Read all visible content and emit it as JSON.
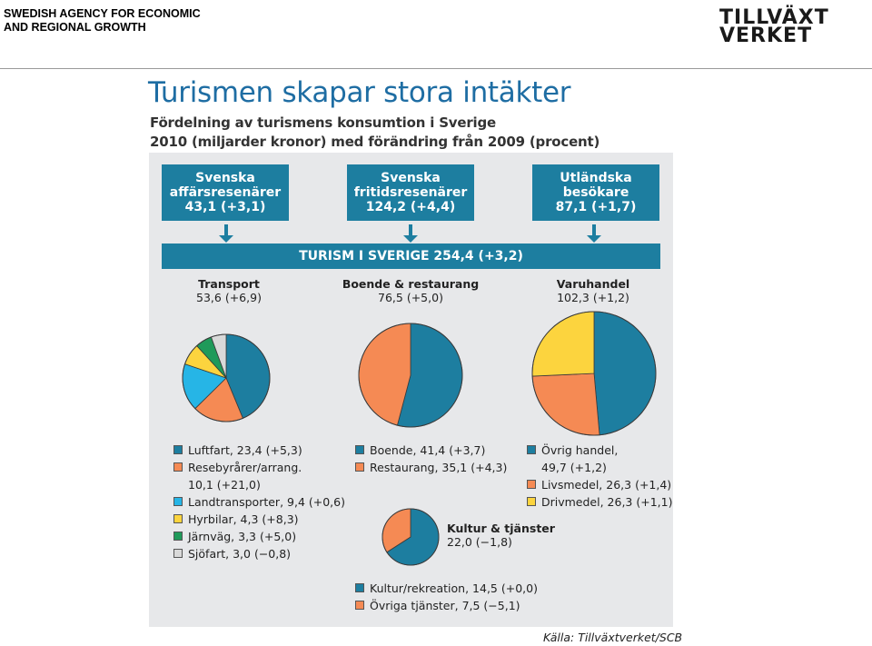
{
  "header": {
    "agency_line1": "SWEDISH AGENCY FOR ECONOMIC",
    "agency_line2": "AND REGIONAL GROWTH",
    "logo_line1": "TILLVÄXT",
    "logo_line2": "VERKET"
  },
  "slide_title": "Turismen skapar stora intäkter",
  "subtitle_line1": "Fördelning av turismens konsumtion i Sverige",
  "subtitle_line2": "2010 (miljarder kronor) med förändring från 2009 (procent)",
  "source": "Källa: Tillväxtverket/SCB",
  "colors": {
    "box": "#1d7ea0",
    "panel": "#e7e8ea"
  },
  "top_boxes": [
    {
      "line1": "Svenska",
      "line2": "affärsresenärer",
      "line3": "43,1 (+3,1)"
    },
    {
      "line1": "Svenska",
      "line2": "fritidsresenärer",
      "line3": "124,2 (+4,4)"
    },
    {
      "line1": "Utländska",
      "line2": "besökare",
      "line3": "87,1 (+1,7)"
    }
  ],
  "banner": "TURISM I SVERIGE    254,4 (+3,2)",
  "chart_data": [
    {
      "type": "pie",
      "title": "Transport",
      "total_label": "53,6 (+6,9)",
      "slices": [
        {
          "label": "Luftfart, 23,4 (+5,3)",
          "value": 23.4,
          "color": "#1d7ea0"
        },
        {
          "label": "Resebyrårer/arrang.",
          "label2": "10,1 (+21,0)",
          "value": 10.1,
          "color": "#f58a54"
        },
        {
          "label": "Landtransporter, 9,4 (+0,6)",
          "value": 9.4,
          "color": "#26b5e6"
        },
        {
          "label": "Hyrbilar, 4,3 (+8,3)",
          "value": 4.3,
          "color": "#fcd43e"
        },
        {
          "label": "Järnväg, 3,3 (+5,0)",
          "value": 3.3,
          "color": "#1f9a5a"
        },
        {
          "label": "Sjöfart, 3,0 (−0,8)",
          "value": 3.0,
          "color": "#d9d9d9"
        }
      ]
    },
    {
      "type": "pie",
      "title": "Boende & restaurang",
      "total_label": "76,5 (+5,0)",
      "slices": [
        {
          "label": "Boende, 41,4 (+3,7)",
          "value": 41.4,
          "color": "#1d7ea0"
        },
        {
          "label": "Restaurang, 35,1 (+4,3)",
          "value": 35.1,
          "color": "#f58a54"
        }
      ]
    },
    {
      "type": "pie",
      "title": "Varuhandel",
      "total_label": "102,3 (+1,2)",
      "slices": [
        {
          "label": "Övrig handel,",
          "label2": "49,7 (+1,2)",
          "value": 49.7,
          "color": "#1d7ea0"
        },
        {
          "label": "Livsmedel, 26,3 (+1,4)",
          "value": 26.3,
          "color": "#f58a54"
        },
        {
          "label": "Drivmedel, 26,3 (+1,1)",
          "value": 26.3,
          "color": "#fcd43e"
        }
      ]
    },
    {
      "type": "pie",
      "title": "Kultur & tjänster",
      "total_label": "22,0 (−1,8)",
      "slices": [
        {
          "label": "Kultur/rekreation, 14,5 (+0,0)",
          "value": 14.5,
          "color": "#1d7ea0"
        },
        {
          "label": "Övriga tjänster, 7,5 (−5,1)",
          "value": 7.5,
          "color": "#f58a54"
        }
      ]
    }
  ]
}
